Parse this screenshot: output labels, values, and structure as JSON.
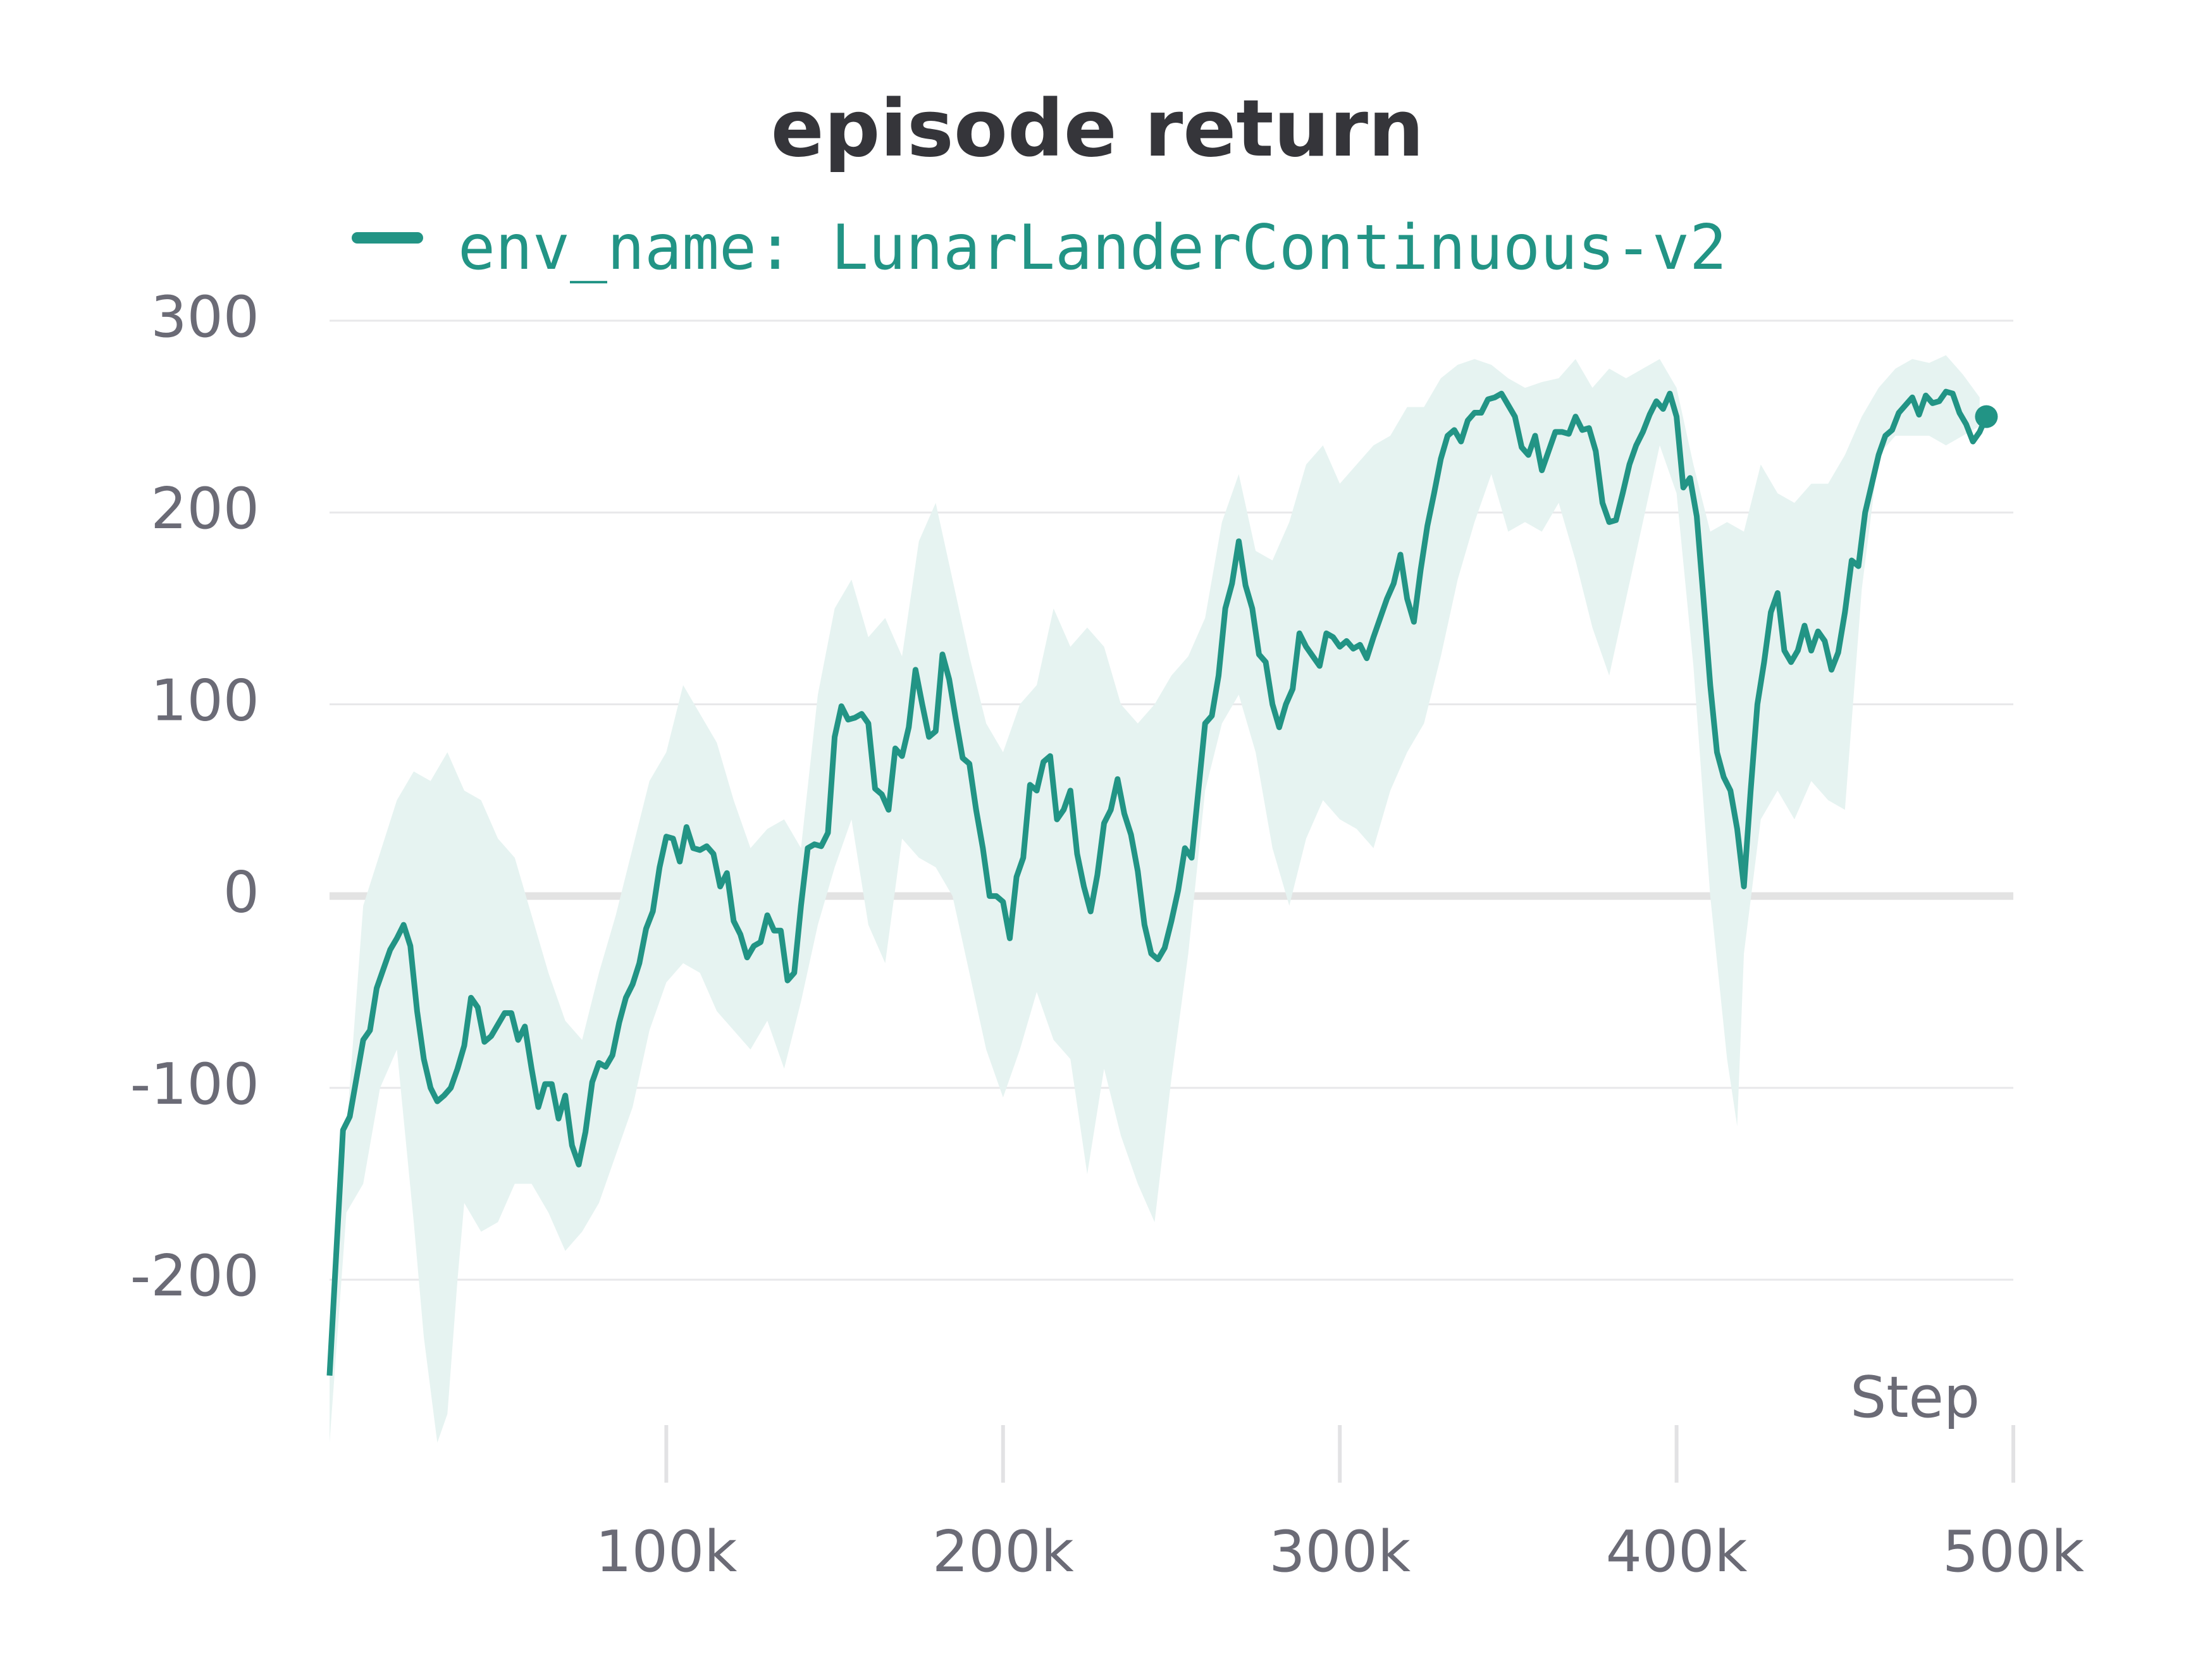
{
  "chart_data": {
    "type": "line",
    "title": "episode return",
    "xlabel": "Step",
    "xlim": [
      0,
      500000
    ],
    "xticks": [
      {
        "value": 100000,
        "label": "100k"
      },
      {
        "value": 200000,
        "label": "200k"
      },
      {
        "value": 300000,
        "label": "300k"
      },
      {
        "value": 400000,
        "label": "400k"
      },
      {
        "value": 500000,
        "label": "500k"
      }
    ],
    "ylim": [
      -290,
      300
    ],
    "yticks": [
      -200,
      -100,
      0,
      100,
      200,
      300
    ],
    "grid": true,
    "series": [
      {
        "name": "env_name: LunarLanderContinuous-v2",
        "color": "#229485",
        "x": [
          0,
          4000,
          6000,
          8000,
          10000,
          12000,
          14000,
          16000,
          18000,
          20000,
          22000,
          24000,
          26000,
          28000,
          30000,
          32000,
          34000,
          36000,
          38000,
          40000,
          42000,
          44000,
          46000,
          48000,
          50000,
          52000,
          54000,
          56000,
          58000,
          60000,
          62000,
          64000,
          66000,
          68000,
          70000,
          72000,
          74000,
          76000,
          78000,
          80000,
          82000,
          84000,
          86000,
          88000,
          90000,
          92000,
          94000,
          96000,
          98000,
          100000,
          102000,
          104000,
          106000,
          108000,
          110000,
          112000,
          114000,
          116000,
          118000,
          120000,
          122000,
          124000,
          126000,
          128000,
          130000,
          132000,
          134000,
          136000,
          138000,
          140000,
          142000,
          144000,
          146000,
          148000,
          150000,
          152000,
          154000,
          156000,
          158000,
          160000,
          162000,
          164000,
          166000,
          168000,
          170000,
          172000,
          174000,
          176000,
          178000,
          180000,
          182000,
          184000,
          186000,
          188000,
          190000,
          192000,
          194000,
          196000,
          198000,
          200000,
          202000,
          204000,
          206000,
          208000,
          210000,
          212000,
          214000,
          216000,
          218000,
          220000,
          222000,
          224000,
          226000,
          228000,
          230000,
          232000,
          234000,
          236000,
          238000,
          240000,
          242000,
          244000,
          246000,
          248000,
          250000,
          252000,
          254000,
          256000,
          258000,
          260000,
          262000,
          264000,
          266000,
          268000,
          270000,
          272000,
          274000,
          276000,
          278000,
          280000,
          282000,
          284000,
          286000,
          288000,
          290000,
          292000,
          294000,
          296000,
          298000,
          300000,
          302000,
          304000,
          306000,
          308000,
          310000,
          312000,
          314000,
          316000,
          318000,
          320000,
          322000,
          324000,
          326000,
          328000,
          330000,
          332000,
          334000,
          336000,
          338000,
          340000,
          342000,
          344000,
          346000,
          348000,
          350000,
          352000,
          354000,
          356000,
          358000,
          360000,
          362000,
          364000,
          366000,
          368000,
          370000,
          372000,
          374000,
          376000,
          378000,
          380000,
          382000,
          384000,
          386000,
          388000,
          390000,
          392000,
          394000,
          396000,
          398000,
          400000,
          402000,
          404000,
          406000,
          408000,
          410000,
          412000,
          414000,
          416000,
          418000,
          420000,
          422000,
          424000,
          426000,
          428000,
          430000,
          432000,
          434000,
          436000,
          438000,
          440000,
          442000,
          444000,
          446000,
          448000,
          450000,
          452000,
          454000,
          456000,
          458000,
          460000,
          462000,
          464000,
          466000,
          468000,
          470000,
          472000,
          474000,
          476000,
          478000,
          480000,
          482000,
          484000,
          486000,
          488000,
          490000,
          492000
        ],
        "values": [
          -250,
          -122,
          -115,
          -95,
          -75,
          -70,
          -48,
          -38,
          -28,
          -22,
          -15,
          -26,
          -60,
          -85,
          -100,
          -107,
          -104,
          -100,
          -90,
          -78,
          -53,
          -58,
          -76,
          -73,
          -67,
          -61,
          -61,
          -75,
          -68,
          -90,
          -110,
          -98,
          -98,
          -116,
          -104,
          -130,
          -140,
          -123,
          -97,
          -87,
          -89,
          -83,
          -66,
          -53,
          -46,
          -35,
          -17,
          -8,
          15,
          31,
          30,
          18,
          36,
          25,
          24,
          26,
          22,
          5,
          12,
          -13,
          -20,
          -32,
          -26,
          -24,
          -10,
          -18,
          -18,
          -44,
          -40,
          -5,
          25,
          27,
          26,
          33,
          83,
          99,
          92,
          93,
          95,
          90,
          56,
          53,
          45,
          77,
          73,
          88,
          118,
          100,
          83,
          86,
          126,
          113,
          92,
          72,
          69,
          45,
          25,
          0,
          0,
          -3,
          -22,
          10,
          20,
          58,
          55,
          70,
          73,
          40,
          45,
          55,
          22,
          5,
          -8,
          11,
          38,
          45,
          61,
          43,
          32,
          13,
          -15,
          -30,
          -33,
          -27,
          -13,
          3,
          25,
          20,
          55,
          90,
          94,
          115,
          150,
          163,
          185,
          162,
          150,
          126,
          122,
          100,
          88,
          100,
          108,
          137,
          130,
          125,
          120,
          137,
          135,
          130,
          133,
          129,
          131,
          124,
          135,
          145,
          155,
          163,
          178,
          155,
          143,
          170,
          193,
          210,
          228,
          240,
          243,
          237,
          248,
          252,
          252,
          259,
          260,
          262,
          256,
          250,
          234,
          230,
          240,
          222,
          232,
          242,
          242,
          241,
          250,
          243,
          244,
          232,
          205,
          195,
          196,
          210,
          225,
          235,
          242,
          251,
          258,
          254,
          262,
          250,
          213,
          218,
          198,
          155,
          110,
          75,
          62,
          55,
          35,
          5,
          55,
          100,
          122,
          148,
          158,
          128,
          122,
          128,
          141,
          128,
          138,
          133,
          118,
          127,
          148,
          175,
          172,
          200,
          215,
          230,
          240,
          243,
          252,
          256,
          260,
          251,
          261,
          257,
          258,
          263,
          262,
          252,
          246,
          237,
          242,
          250
        ]
      }
    ],
    "band_color": "#e6f3f1",
    "band_upper": {
      "x": [
        0,
        10000,
        20000,
        25000,
        30000,
        35000,
        40000,
        45000,
        50000,
        55000,
        60000,
        65000,
        70000,
        75000,
        80000,
        85000,
        90000,
        95000,
        100000,
        105000,
        110000,
        115000,
        120000,
        125000,
        130000,
        135000,
        140000,
        145000,
        150000,
        155000,
        160000,
        165000,
        170000,
        175000,
        180000,
        185000,
        190000,
        195000,
        200000,
        205000,
        210000,
        215000,
        220000,
        225000,
        230000,
        235000,
        240000,
        245000,
        250000,
        255000,
        260000,
        265000,
        270000,
        275000,
        280000,
        285000,
        290000,
        295000,
        300000,
        305000,
        310000,
        315000,
        320000,
        325000,
        330000,
        335000,
        340000,
        345000,
        350000,
        355000,
        360000,
        365000,
        370000,
        375000,
        380000,
        385000,
        390000,
        395000,
        400000,
        405000,
        410000,
        415000,
        420000,
        425000,
        430000,
        435000,
        440000,
        445000,
        450000,
        455000,
        460000,
        465000,
        470000,
        475000,
        480000,
        485000,
        490000
      ],
      "values": [
        -240,
        -5,
        50,
        65,
        60,
        75,
        55,
        50,
        30,
        20,
        -10,
        -40,
        -65,
        -75,
        -40,
        -10,
        25,
        60,
        75,
        110,
        95,
        80,
        50,
        25,
        35,
        40,
        25,
        105,
        150,
        165,
        135,
        145,
        125,
        185,
        205,
        165,
        125,
        90,
        75,
        100,
        110,
        150,
        130,
        140,
        130,
        100,
        90,
        100,
        115,
        125,
        145,
        195,
        220,
        180,
        175,
        195,
        225,
        235,
        215,
        225,
        235,
        240,
        255,
        255,
        270,
        277,
        280,
        277,
        270,
        265,
        268,
        270,
        280,
        265,
        275,
        270,
        275,
        280,
        265,
        225,
        190,
        195,
        190,
        225,
        210,
        205,
        215,
        215,
        230,
        250,
        265,
        275,
        280,
        278,
        282,
        272,
        260
      ]
    },
    "band_lower": {
      "x": [
        0,
        5000,
        10000,
        15000,
        20000,
        25000,
        28000,
        32000,
        35000,
        38000,
        40000,
        45000,
        50000,
        55000,
        60000,
        65000,
        70000,
        75000,
        80000,
        85000,
        90000,
        95000,
        100000,
        105000,
        110000,
        115000,
        120000,
        125000,
        130000,
        135000,
        140000,
        145000,
        150000,
        155000,
        160000,
        165000,
        170000,
        175000,
        180000,
        185000,
        190000,
        195000,
        200000,
        205000,
        210000,
        215000,
        220000,
        225000,
        230000,
        235000,
        240000,
        245000,
        250000,
        255000,
        260000,
        265000,
        270000,
        275000,
        280000,
        285000,
        290000,
        295000,
        300000,
        305000,
        310000,
        315000,
        320000,
        325000,
        330000,
        335000,
        340000,
        345000,
        350000,
        355000,
        360000,
        365000,
        370000,
        375000,
        380000,
        385000,
        390000,
        395000,
        400000,
        405000,
        410000,
        415000,
        418000,
        420000,
        425000,
        430000,
        435000,
        440000,
        445000,
        450000,
        455000,
        460000,
        465000,
        470000,
        475000,
        480000,
        485000,
        490000
      ],
      "values": [
        -285,
        -165,
        -150,
        -100,
        -80,
        -170,
        -230,
        -285,
        -270,
        -200,
        -160,
        -175,
        -170,
        -150,
        -150,
        -165,
        -185,
        -175,
        -160,
        -135,
        -110,
        -70,
        -45,
        -35,
        -40,
        -60,
        -70,
        -80,
        -65,
        -90,
        -55,
        -15,
        15,
        40,
        -15,
        -35,
        30,
        20,
        15,
        0,
        -40,
        -80,
        -105,
        -80,
        -50,
        -75,
        -85,
        -145,
        -90,
        -125,
        -150,
        -170,
        -95,
        -30,
        55,
        90,
        105,
        75,
        25,
        -5,
        30,
        50,
        40,
        35,
        25,
        55,
        75,
        90,
        125,
        165,
        195,
        220,
        190,
        195,
        190,
        205,
        175,
        140,
        115,
        155,
        195,
        235,
        210,
        120,
        0,
        -85,
        -120,
        -30,
        40,
        55,
        40,
        60,
        50,
        45,
        160,
        230,
        240,
        240,
        240,
        235,
        240,
        245
      ]
    }
  }
}
